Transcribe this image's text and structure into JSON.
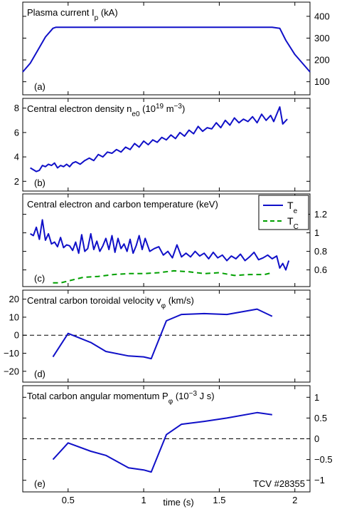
{
  "figure": {
    "xlabel": "time (s)",
    "xlim": [
      0.2,
      2.1
    ],
    "xticks": [
      0.5,
      1,
      1.5,
      2
    ],
    "xtick_labels": [
      "0.5",
      "1",
      "1.5",
      "2"
    ],
    "line_color": "#1010c8",
    "dash_color": "#00a000"
  },
  "chart_data": [
    {
      "type": "line",
      "id": "ip",
      "title": "Plasma current I",
      "title_sub": "p",
      "title_tail": " (kA)",
      "tag": "(a)",
      "yaxis": "right",
      "ylim": [
        40,
        465
      ],
      "yticks": [
        100,
        200,
        300,
        400
      ],
      "ytick_labels": [
        "100",
        "200",
        "300",
        "400"
      ],
      "series": [
        {
          "x": [
            0.2,
            0.25,
            0.3,
            0.35,
            0.4,
            0.42,
            0.5,
            0.7,
            1.0,
            1.3,
            1.6,
            1.85,
            1.9,
            1.94,
            2.0,
            2.1
          ],
          "values": [
            145,
            185,
            245,
            305,
            345,
            350,
            350,
            350,
            350,
            350,
            350,
            350,
            345,
            290,
            225,
            145
          ]
        }
      ]
    },
    {
      "type": "line",
      "id": "ne",
      "title": "Central electron density n",
      "title_sub": "e0",
      "title_tail": " (10",
      "title_sup": "19",
      "title_tail2": " m",
      "title_sup2": "−3",
      "title_tail3": ")",
      "tag": "(b)",
      "yaxis": "left",
      "ylim": [
        1.2,
        8.8
      ],
      "yticks": [
        2,
        4,
        6,
        8
      ],
      "ytick_labels": [
        "2",
        "4",
        "6",
        "8"
      ],
      "series": [
        {
          "x": [
            0.25,
            0.29,
            0.31,
            0.33,
            0.35,
            0.37,
            0.39,
            0.41,
            0.43,
            0.45,
            0.47,
            0.49,
            0.51,
            0.53,
            0.55,
            0.58,
            0.61,
            0.64,
            0.67,
            0.7,
            0.73,
            0.76,
            0.79,
            0.82,
            0.85,
            0.88,
            0.91,
            0.94,
            0.97,
            1.0,
            1.03,
            1.06,
            1.09,
            1.12,
            1.15,
            1.18,
            1.21,
            1.24,
            1.27,
            1.3,
            1.33,
            1.36,
            1.39,
            1.42,
            1.45,
            1.48,
            1.51,
            1.54,
            1.57,
            1.6,
            1.63,
            1.66,
            1.69,
            1.72,
            1.75,
            1.78,
            1.81,
            1.84,
            1.86,
            1.88,
            1.9,
            1.92,
            1.95
          ],
          "values": [
            3.1,
            2.8,
            2.9,
            3.3,
            3.2,
            3.4,
            3.3,
            3.5,
            3.1,
            3.3,
            3.2,
            3.4,
            3.2,
            3.5,
            3.6,
            3.4,
            3.7,
            3.9,
            3.7,
            4.2,
            4.0,
            4.4,
            4.3,
            4.6,
            4.4,
            4.8,
            4.6,
            5.1,
            4.8,
            5.3,
            5.0,
            5.4,
            5.2,
            5.6,
            5.4,
            5.8,
            5.5,
            6.0,
            5.7,
            6.2,
            5.9,
            6.5,
            6.1,
            6.4,
            6.3,
            6.8,
            6.4,
            7.0,
            6.6,
            7.2,
            6.8,
            7.1,
            6.9,
            7.3,
            6.8,
            7.5,
            7.0,
            7.4,
            6.9,
            7.5,
            8.1,
            6.7,
            7.1
          ]
        }
      ]
    },
    {
      "type": "line",
      "id": "temp",
      "title": "Central electron and carbon temperature (keV)",
      "tag": "(c)",
      "yaxis": "right",
      "ylim": [
        0.42,
        1.42
      ],
      "yticks": [
        0.6,
        0.8,
        1,
        1.2
      ],
      "ytick_labels": [
        "0.6",
        "0.8",
        "1",
        "1.2"
      ],
      "legend": [
        "T",
        "T"
      ],
      "legend_sub": [
        "e",
        "C"
      ],
      "legend_position": "top-right",
      "series": [
        {
          "name": "Te",
          "style": "solid",
          "x": [
            0.25,
            0.27,
            0.29,
            0.31,
            0.33,
            0.35,
            0.37,
            0.39,
            0.41,
            0.43,
            0.45,
            0.47,
            0.49,
            0.51,
            0.53,
            0.55,
            0.57,
            0.59,
            0.61,
            0.63,
            0.65,
            0.67,
            0.69,
            0.71,
            0.73,
            0.75,
            0.77,
            0.79,
            0.81,
            0.83,
            0.85,
            0.87,
            0.89,
            0.91,
            0.93,
            0.95,
            0.97,
            0.99,
            1.01,
            1.04,
            1.07,
            1.1,
            1.13,
            1.16,
            1.19,
            1.22,
            1.25,
            1.28,
            1.31,
            1.34,
            1.37,
            1.4,
            1.43,
            1.46,
            1.49,
            1.52,
            1.55,
            1.58,
            1.61,
            1.64,
            1.67,
            1.7,
            1.73,
            1.76,
            1.79,
            1.82,
            1.85,
            1.88,
            1.9,
            1.92,
            1.94,
            1.96
          ],
          "values": [
            0.99,
            0.97,
            1.06,
            0.93,
            1.14,
            0.92,
            0.99,
            0.88,
            0.9,
            0.85,
            0.95,
            0.84,
            0.87,
            0.86,
            0.81,
            0.9,
            0.78,
            0.98,
            0.8,
            0.83,
            0.99,
            0.82,
            0.91,
            0.8,
            0.86,
            0.94,
            0.82,
            0.97,
            0.79,
            0.94,
            0.83,
            0.88,
            0.8,
            0.93,
            0.78,
            0.86,
            0.97,
            0.82,
            0.94,
            0.8,
            0.83,
            0.85,
            0.76,
            0.8,
            0.73,
            0.87,
            0.74,
            0.78,
            0.74,
            0.8,
            0.75,
            0.78,
            0.72,
            0.79,
            0.73,
            0.76,
            0.7,
            0.75,
            0.72,
            0.77,
            0.7,
            0.74,
            0.79,
            0.71,
            0.73,
            0.76,
            0.72,
            0.75,
            0.62,
            0.67,
            0.6,
            0.7
          ]
        },
        {
          "name": "TC",
          "style": "dashed",
          "x": [
            0.4,
            0.45,
            0.5,
            0.55,
            0.6,
            0.7,
            0.8,
            0.9,
            1.0,
            1.1,
            1.2,
            1.3,
            1.4,
            1.5,
            1.6,
            1.7,
            1.8,
            1.85
          ],
          "values": [
            0.46,
            0.46,
            0.48,
            0.5,
            0.52,
            0.53,
            0.55,
            0.56,
            0.56,
            0.57,
            0.59,
            0.58,
            0.56,
            0.57,
            0.54,
            0.55,
            0.55,
            0.57
          ]
        }
      ]
    },
    {
      "type": "line",
      "id": "vphi",
      "title": "Central carbon toroidal velocity v",
      "title_sub": "φ",
      "title_tail": " (km/s)",
      "tag": "(d)",
      "yaxis": "left",
      "ylim": [
        -26,
        25
      ],
      "yticks": [
        -20,
        -10,
        0,
        10,
        20
      ],
      "ytick_labels": [
        "−20",
        "−10",
        "0",
        "10",
        "20"
      ],
      "zero_line": true,
      "series": [
        {
          "x": [
            0.4,
            0.5,
            0.65,
            0.75,
            0.9,
            1.0,
            1.05,
            1.15,
            1.25,
            1.4,
            1.55,
            1.75,
            1.85
          ],
          "values": [
            -12,
            1,
            -4,
            -9,
            -11.5,
            -12,
            -13,
            8,
            11.5,
            12,
            11.5,
            14.5,
            10.5
          ]
        }
      ]
    },
    {
      "type": "line",
      "id": "pphi",
      "title": "Total carbon angular momentum P",
      "title_sub": "φ",
      "title_tail": " (10",
      "title_sup": "−3",
      "title_tail2": " J s)",
      "tag": "(e)",
      "annotation": "TCV #28355",
      "yaxis": "right",
      "ylim": [
        -1.28,
        1.28
      ],
      "yticks": [
        -1,
        -0.5,
        0,
        0.5,
        1
      ],
      "ytick_labels": [
        "−1",
        "−0.5",
        "0",
        "0.5",
        "1"
      ],
      "zero_line": true,
      "series": [
        {
          "x": [
            0.4,
            0.5,
            0.65,
            0.75,
            0.9,
            1.0,
            1.05,
            1.15,
            1.25,
            1.4,
            1.55,
            1.75,
            1.85
          ],
          "values": [
            -0.5,
            -0.1,
            -0.3,
            -0.4,
            -0.7,
            -0.75,
            -0.8,
            0.1,
            0.35,
            0.42,
            0.5,
            0.63,
            0.58
          ]
        }
      ]
    }
  ]
}
